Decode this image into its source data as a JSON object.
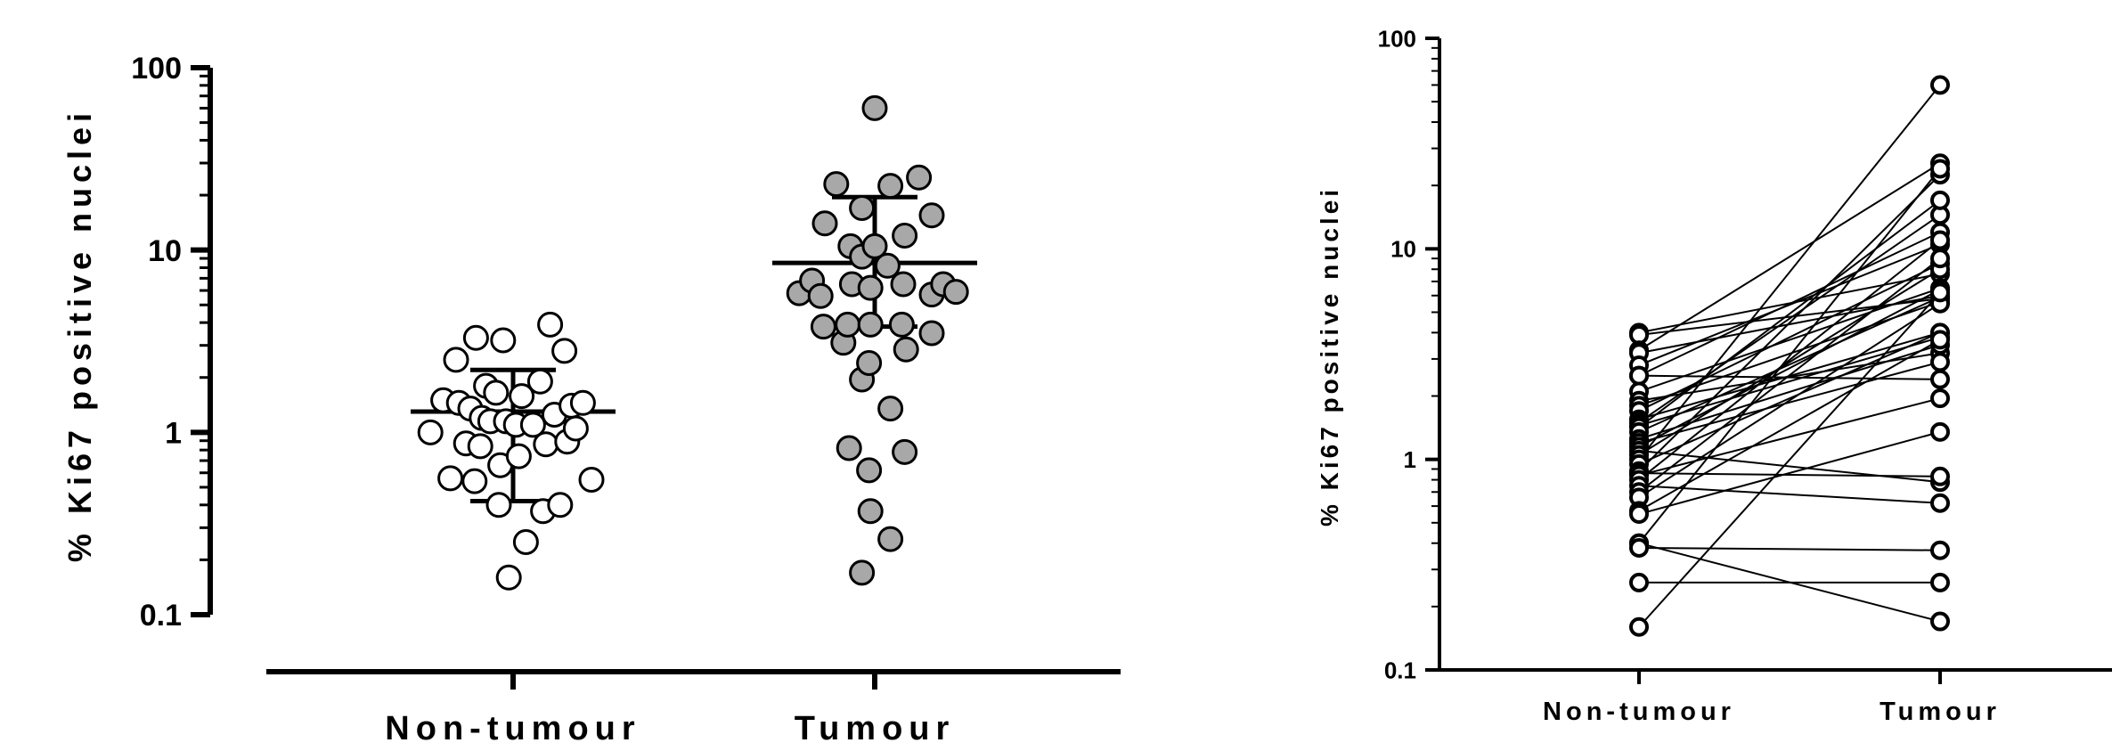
{
  "chart_data": [
    {
      "type": "scatter",
      "variant": "dot-plot-with-mean-sd",
      "ylabel": "% Ki67 positive nuclei",
      "yscale": "log",
      "ylim": [
        0.1,
        100
      ],
      "yticks": [
        "0.1",
        "1",
        "10",
        "100"
      ],
      "categories": [
        "Non-tumour",
        "Tumour"
      ],
      "marker_fill": [
        "#ffffff",
        "#a8a8a8"
      ],
      "series": [
        {
          "category": "Non-tumour",
          "summary": {
            "mean": 1.3,
            "sd_low": 0.42,
            "sd_high": 2.2
          },
          "points": [
            [
              -0.58,
              1.0
            ],
            [
              -0.49,
              1.5
            ],
            [
              -0.44,
              0.56
            ],
            [
              -0.4,
              2.5
            ],
            [
              -0.38,
              1.45
            ],
            [
              -0.33,
              0.87
            ],
            [
              -0.3,
              1.35
            ],
            [
              -0.27,
              0.54
            ],
            [
              -0.26,
              3.3
            ],
            [
              -0.23,
              0.84
            ],
            [
              -0.22,
              1.2
            ],
            [
              -0.19,
              1.8
            ],
            [
              -0.16,
              1.15
            ],
            [
              -0.12,
              1.65
            ],
            [
              -0.1,
              0.4
            ],
            [
              -0.09,
              0.66
            ],
            [
              -0.07,
              3.2
            ],
            [
              -0.05,
              1.15
            ],
            [
              -0.03,
              0.16
            ],
            [
              0.02,
              1.1
            ],
            [
              0.04,
              0.74
            ],
            [
              0.06,
              1.58
            ],
            [
              0.09,
              0.25
            ],
            [
              0.14,
              1.1
            ],
            [
              0.19,
              1.9
            ],
            [
              0.21,
              0.37
            ],
            [
              0.23,
              0.86
            ],
            [
              0.26,
              3.9
            ],
            [
              0.29,
              1.25
            ],
            [
              0.33,
              0.4
            ],
            [
              0.36,
              2.8
            ],
            [
              0.38,
              0.89
            ],
            [
              0.41,
              1.4
            ],
            [
              0.44,
              1.05
            ],
            [
              0.49,
              1.45
            ],
            [
              0.55,
              0.55
            ]
          ]
        },
        {
          "category": "Tumour",
          "summary": {
            "mean": 8.5,
            "sd_low": 3.8,
            "sd_high": 19.5
          },
          "points": [
            [
              -0.53,
              5.8
            ],
            [
              -0.44,
              6.8
            ],
            [
              -0.38,
              5.6
            ],
            [
              -0.36,
              3.8
            ],
            [
              -0.35,
              14
            ],
            [
              -0.27,
              23
            ],
            [
              -0.22,
              3.1
            ],
            [
              -0.19,
              3.9
            ],
            [
              -0.18,
              0.82
            ],
            [
              -0.17,
              10.5
            ],
            [
              -0.16,
              6.5
            ],
            [
              -0.09,
              17
            ],
            [
              -0.09,
              9.2
            ],
            [
              -0.09,
              1.95
            ],
            [
              -0.09,
              0.17
            ],
            [
              -0.04,
              2.4
            ],
            [
              -0.04,
              0.62
            ],
            [
              -0.03,
              3.9
            ],
            [
              -0.03,
              6.2
            ],
            [
              -0.03,
              0.37
            ],
            [
              0.0,
              10.5
            ],
            [
              0.0,
              60
            ],
            [
              0.09,
              8.2
            ],
            [
              0.11,
              1.35
            ],
            [
              0.11,
              22.5
            ],
            [
              0.11,
              0.26
            ],
            [
              0.19,
              3.9
            ],
            [
              0.2,
              6.5
            ],
            [
              0.21,
              12
            ],
            [
              0.21,
              0.78
            ],
            [
              0.22,
              2.85
            ],
            [
              0.31,
              25
            ],
            [
              0.4,
              15.5
            ],
            [
              0.4,
              3.5
            ],
            [
              0.4,
              5.7
            ],
            [
              0.48,
              6.5
            ],
            [
              0.57,
              5.9
            ]
          ]
        }
      ]
    },
    {
      "type": "line",
      "variant": "paired-before-after",
      "ylabel": "% Ki67 positive nuclei",
      "yscale": "log",
      "ylim": [
        0.1,
        100
      ],
      "yticks": [
        "0.1",
        "1",
        "10",
        "100"
      ],
      "categories": [
        "Non-tumour",
        "Tumour"
      ],
      "marker_fill": "#ffffff",
      "pairs": [
        [
          4.0,
          7.6
        ],
        [
          3.9,
          5.8
        ],
        [
          3.3,
          25.5
        ],
        [
          3.2,
          6.0
        ],
        [
          2.8,
          10.5
        ],
        [
          2.5,
          12.0
        ],
        [
          2.5,
          2.4
        ],
        [
          2.1,
          6.5
        ],
        [
          1.9,
          3.2
        ],
        [
          1.8,
          5.6
        ],
        [
          1.7,
          8.5
        ],
        [
          1.55,
          4.0
        ],
        [
          1.5,
          14.5
        ],
        [
          1.45,
          3.8
        ],
        [
          1.42,
          17.0
        ],
        [
          1.35,
          5.9
        ],
        [
          1.25,
          3.5
        ],
        [
          1.2,
          2.9
        ],
        [
          1.15,
          6.4
        ],
        [
          1.1,
          0.78
        ],
        [
          1.05,
          8.0
        ],
        [
          1.0,
          60.0
        ],
        [
          0.95,
          4.0
        ],
        [
          0.88,
          22.5
        ],
        [
          0.86,
          0.83
        ],
        [
          0.84,
          1.95
        ],
        [
          0.8,
          11.0
        ],
        [
          0.75,
          0.62
        ],
        [
          0.7,
          9.0
        ],
        [
          0.66,
          5.5
        ],
        [
          0.57,
          3.7
        ],
        [
          0.55,
          1.35
        ],
        [
          0.4,
          0.17
        ],
        [
          0.4,
          24.0
        ],
        [
          0.38,
          0.37
        ],
        [
          0.26,
          0.26
        ],
        [
          0.16,
          6.2
        ]
      ]
    }
  ]
}
